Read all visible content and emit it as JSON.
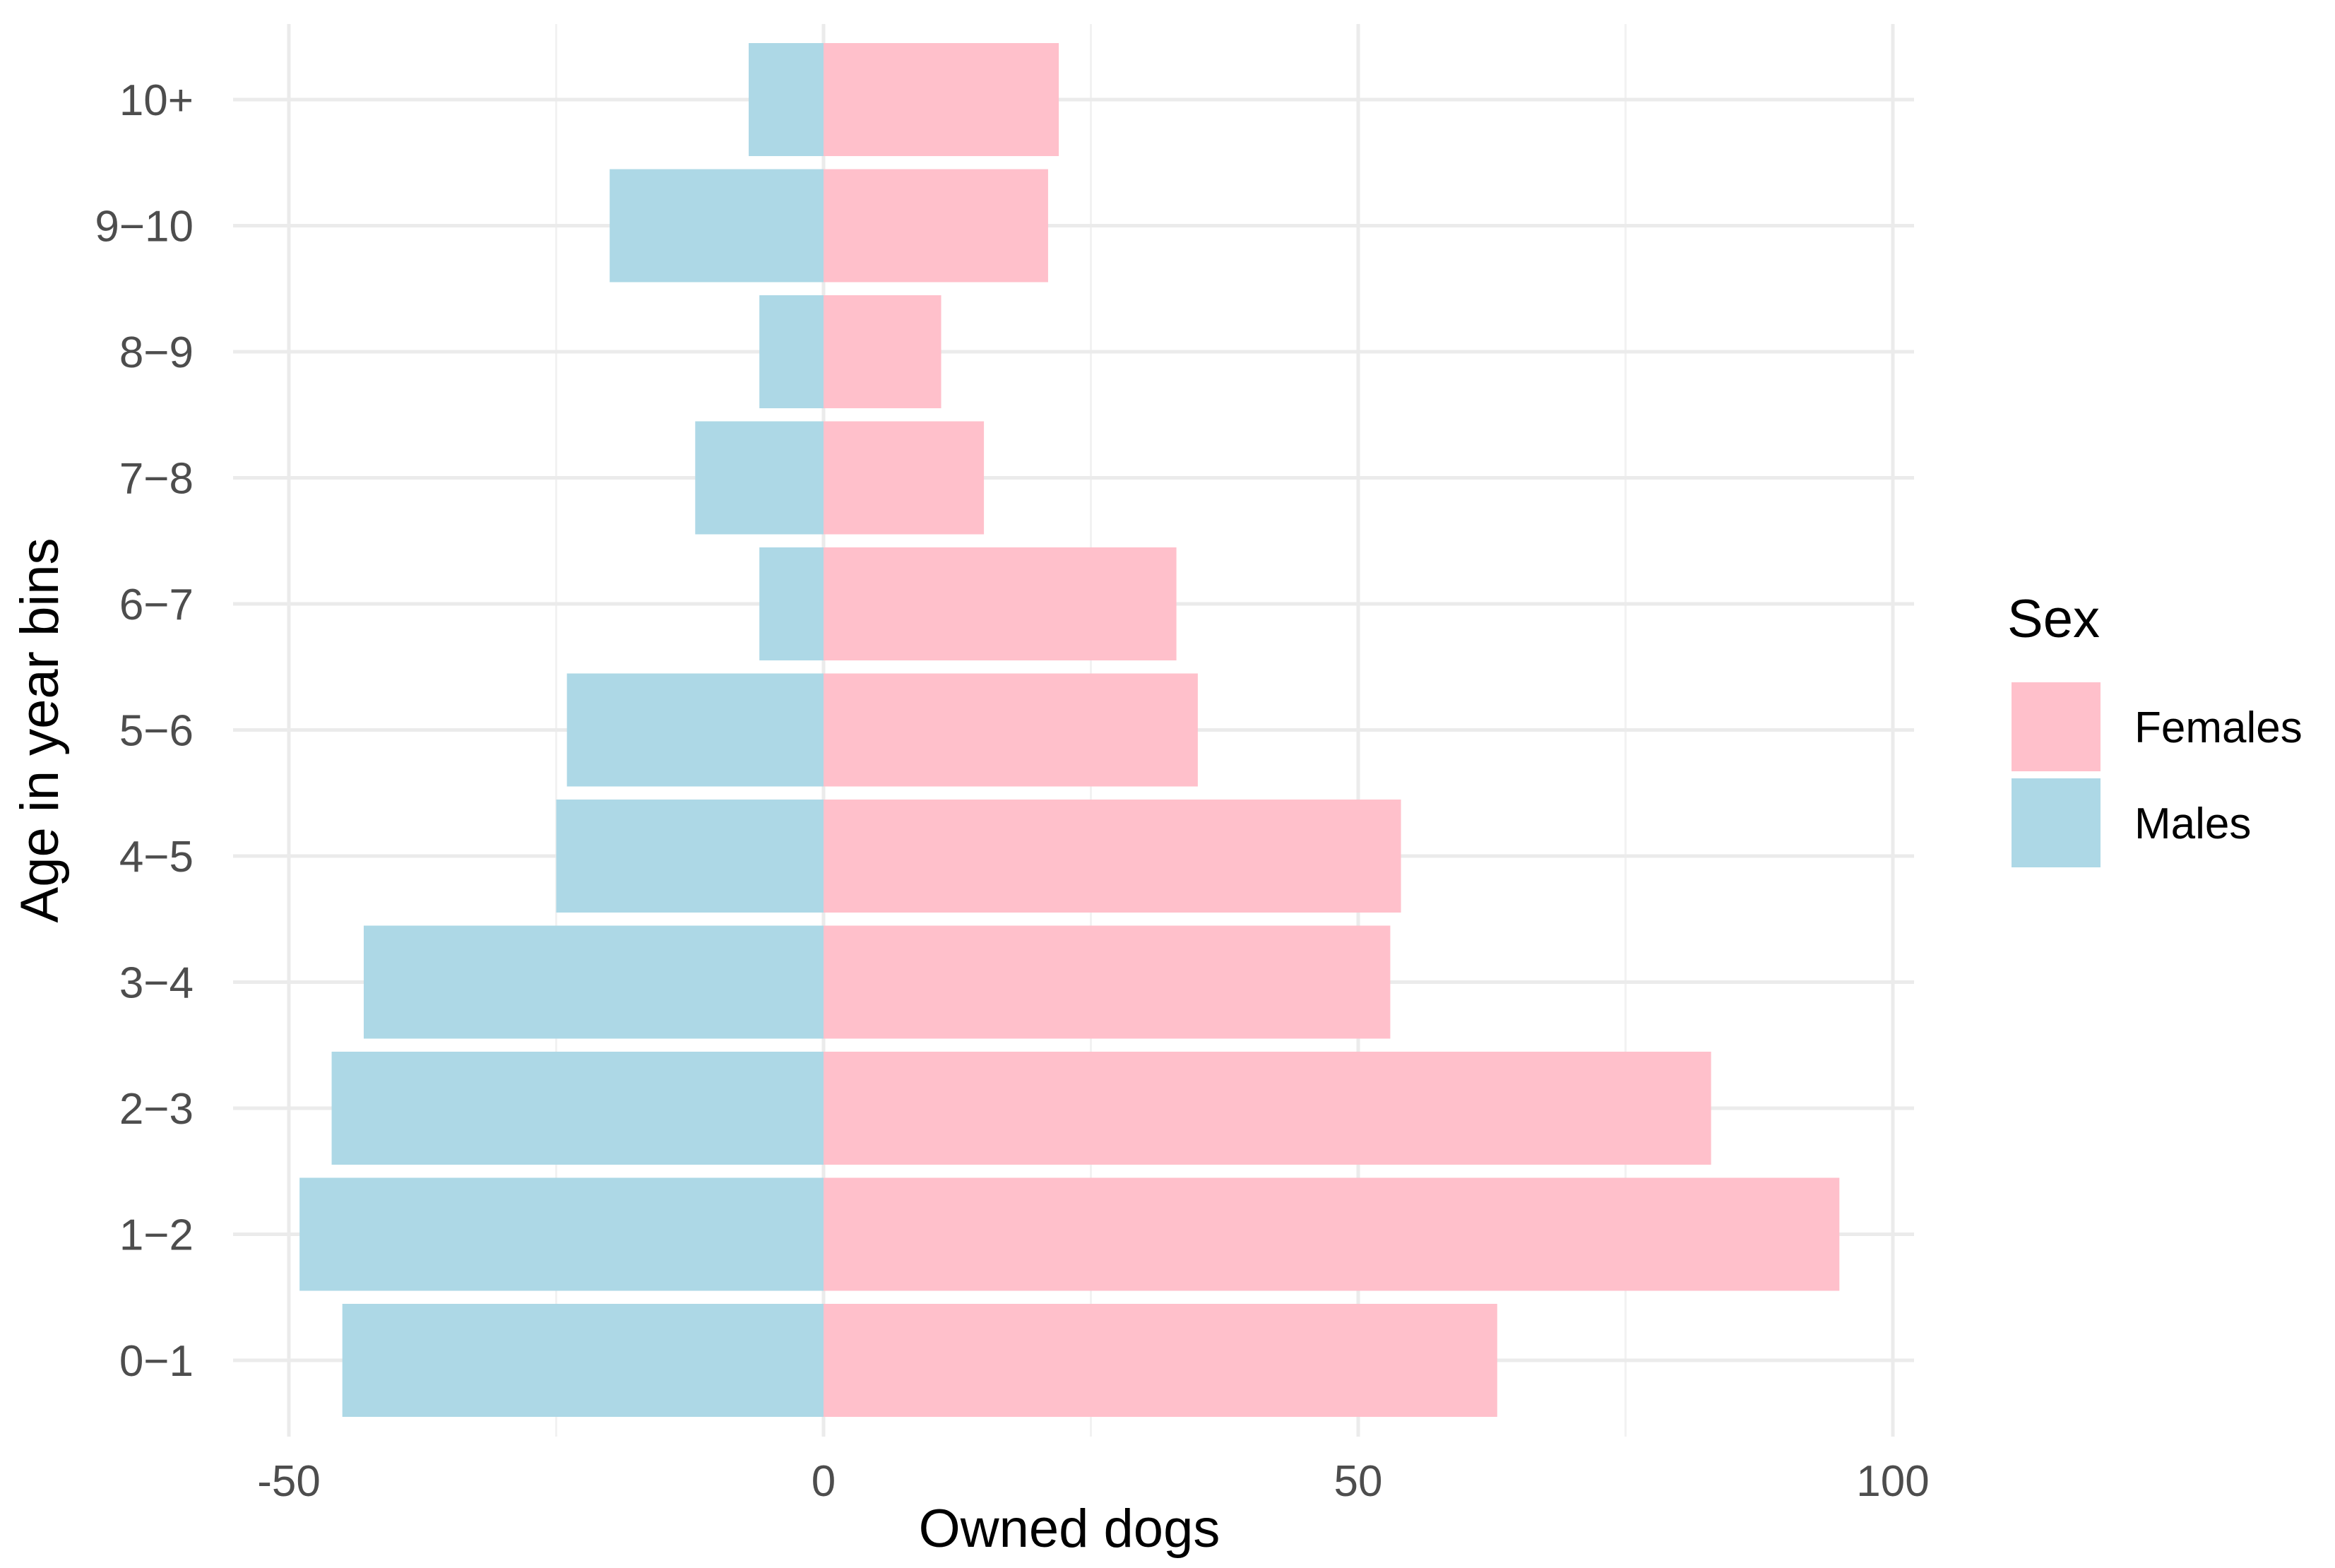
{
  "chart_data": {
    "type": "bar",
    "orientation": "horizontal",
    "stacked_diverging": true,
    "title": "",
    "xlabel": "Owned dogs",
    "ylabel": "Age in year bins",
    "xlim": [
      -50,
      100
    ],
    "x_ticks": [
      -50,
      0,
      50,
      100
    ],
    "x_tick_labels": [
      "-50",
      "0",
      "50",
      "100"
    ],
    "x_minor_ticks": [
      -25,
      25,
      75
    ],
    "categories": [
      "0−1",
      "1−2",
      "2−3",
      "3−4",
      "4−5",
      "5−6",
      "6−7",
      "7−8",
      "8−9",
      "9−10",
      "10+"
    ],
    "grid": true,
    "legend": {
      "title": "Sex",
      "position": "right"
    },
    "series": [
      {
        "name": "Females",
        "color": "#FFC0CB",
        "values": [
          63,
          95,
          83,
          53,
          54,
          35,
          33,
          15,
          11,
          21,
          22
        ]
      },
      {
        "name": "Males",
        "color": "#ADD8E6",
        "values": [
          -45,
          -49,
          -46,
          -43,
          -25,
          -24,
          -6,
          -12,
          -6,
          -20,
          -7
        ]
      }
    ]
  }
}
